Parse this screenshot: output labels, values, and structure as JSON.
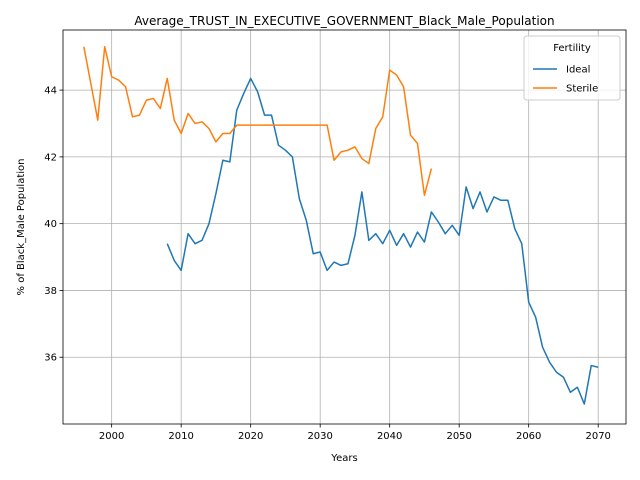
{
  "chart_data": {
    "type": "line",
    "title": "Average_TRUST_IN_EXECUTIVE_GOVERNMENT_Black_Male_Population",
    "xlabel": "Years",
    "ylabel": "% of Black_Male Population",
    "xlim": [
      1993,
      2074
    ],
    "ylim": [
      34.0,
      45.8
    ],
    "xticks": [
      2000,
      2010,
      2020,
      2030,
      2040,
      2050,
      2060,
      2070
    ],
    "yticks": [
      36,
      38,
      40,
      42,
      44
    ],
    "grid": true,
    "legend": {
      "title": "Fertility",
      "position": "top-right"
    },
    "series": [
      {
        "name": "Ideal",
        "color": "#1f77b4",
        "x": [
          2008,
          2009,
          2010,
          2011,
          2012,
          2013,
          2014,
          2015,
          2016,
          2017,
          2018,
          2019,
          2020,
          2021,
          2022,
          2023,
          2024,
          2025,
          2026,
          2027,
          2028,
          2029,
          2030,
          2031,
          2032,
          2033,
          2034,
          2035,
          2036,
          2037,
          2038,
          2039,
          2040,
          2041,
          2042,
          2043,
          2044,
          2045,
          2046,
          2047,
          2048,
          2049,
          2050,
          2051,
          2052,
          2053,
          2054,
          2055,
          2056,
          2057,
          2058,
          2059,
          2060,
          2061,
          2062,
          2063,
          2064,
          2065,
          2066,
          2067,
          2068,
          2069,
          2070
        ],
        "y": [
          39.4,
          38.9,
          38.6,
          39.7,
          39.4,
          39.5,
          40.0,
          40.9,
          41.9,
          41.85,
          43.4,
          43.9,
          44.35,
          43.95,
          43.25,
          43.25,
          42.35,
          42.2,
          42.0,
          40.75,
          40.1,
          39.1,
          39.15,
          38.6,
          38.85,
          38.75,
          38.8,
          39.65,
          40.95,
          39.5,
          39.7,
          39.4,
          39.8,
          39.35,
          39.7,
          39.3,
          39.75,
          39.45,
          40.35,
          40.05,
          39.7,
          39.95,
          39.65,
          41.1,
          40.45,
          40.95,
          40.35,
          40.8,
          40.7,
          40.7,
          39.85,
          39.4,
          37.65,
          37.2,
          36.3,
          35.85,
          35.55,
          35.4,
          34.95,
          35.1,
          34.6,
          35.75,
          35.7
        ]
      },
      {
        "name": "Sterile",
        "color": "#ff7f0e",
        "x": [
          1996,
          1997,
          1998,
          1999,
          2000,
          2001,
          2002,
          2003,
          2004,
          2005,
          2006,
          2007,
          2008,
          2009,
          2010,
          2011,
          2012,
          2013,
          2014,
          2015,
          2016,
          2017,
          2018,
          2019,
          2020,
          2021,
          2022,
          2023,
          2024,
          2025,
          2026,
          2027,
          2028,
          2029,
          2030,
          2031,
          2032,
          2033,
          2034,
          2035,
          2036,
          2037,
          2038,
          2039,
          2040,
          2041,
          2042,
          2043,
          2044,
          2045,
          2046
        ],
        "y": [
          45.3,
          44.2,
          43.1,
          45.3,
          44.4,
          44.3,
          44.1,
          43.2,
          43.25,
          43.7,
          43.75,
          43.45,
          44.35,
          43.1,
          42.7,
          43.3,
          43.0,
          43.05,
          42.85,
          42.45,
          42.7,
          42.7,
          42.95,
          42.95,
          42.95,
          42.95,
          42.95,
          42.95,
          42.95,
          42.95,
          42.95,
          42.95,
          42.95,
          42.95,
          42.95,
          42.95,
          41.9,
          42.15,
          42.2,
          42.3,
          41.95,
          41.8,
          42.85,
          43.2,
          44.6,
          44.45,
          44.1,
          42.65,
          42.4,
          40.85,
          41.65
        ]
      }
    ]
  }
}
